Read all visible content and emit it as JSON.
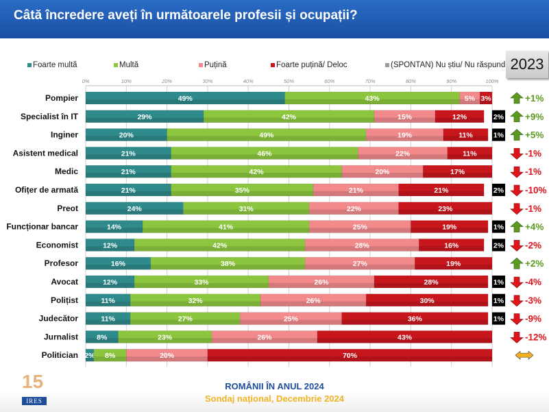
{
  "title": "Câtă încredere aveți în următoarele profesii și ocupații?",
  "year_label": "2023",
  "footer": {
    "line1": "ROMÂNII ÎN ANUL 2024",
    "line2": "Sondaj național, Decembrie 2024",
    "logo_text": "IRES",
    "logo_number": "15"
  },
  "chart_data": {
    "type": "bar",
    "orientation": "horizontal-stacked",
    "xlim": [
      0,
      100
    ],
    "x_ticks": [
      "0%",
      "10%",
      "20%",
      "30%",
      "40%",
      "50%",
      "60%",
      "70%",
      "80%",
      "90%",
      "100%"
    ],
    "grid": true,
    "legend_position": "top",
    "categories": [
      "Pompier",
      "Specialist în IT",
      "Inginer",
      "Asistent medical",
      "Medic",
      "Ofițer de armată",
      "Preot",
      "Funcționar bancar",
      "Economist",
      "Profesor",
      "Avocat",
      "Polițist",
      "Judecător",
      "Jurnalist",
      "Politician"
    ],
    "series": [
      {
        "name": "Foarte multă",
        "color": "#2f8a8c",
        "values": [
          49,
          29,
          20,
          21,
          21,
          21,
          24,
          14,
          12,
          16,
          12,
          11,
          11,
          8,
          2
        ]
      },
      {
        "name": "Multă",
        "color": "#8cc63f",
        "values": [
          43,
          42,
          49,
          46,
          42,
          35,
          31,
          41,
          42,
          38,
          33,
          32,
          27,
          23,
          8
        ]
      },
      {
        "name": "Puțină",
        "color": "#f28a8c",
        "values": [
          5,
          15,
          19,
          22,
          20,
          21,
          22,
          25,
          28,
          27,
          26,
          26,
          25,
          26,
          20
        ]
      },
      {
        "name": "Foarte puțină/ Deloc",
        "color": "#c8161d",
        "values": [
          3,
          12,
          11,
          11,
          17,
          21,
          23,
          19,
          16,
          19,
          28,
          30,
          36,
          43,
          70
        ]
      },
      {
        "name": "(SPONTAN) Nu știu/ Nu răspund",
        "color": "#000000",
        "legend_color": "#999999",
        "values": [
          0,
          2,
          1,
          0,
          0,
          2,
          0,
          1,
          2,
          0,
          1,
          1,
          1,
          0,
          0
        ]
      }
    ],
    "change_vs_2023": [
      "+1%",
      "+9%",
      "+5%",
      "-1%",
      "-1%",
      "-10%",
      "-1%",
      "+4%",
      "-2%",
      "+2%",
      "-4%",
      "-3%",
      "-9%",
      "-12%",
      "="
    ],
    "colors": {
      "up": "#5a9a1f",
      "down": "#e0141b",
      "neutral": "#f2b01e"
    }
  }
}
